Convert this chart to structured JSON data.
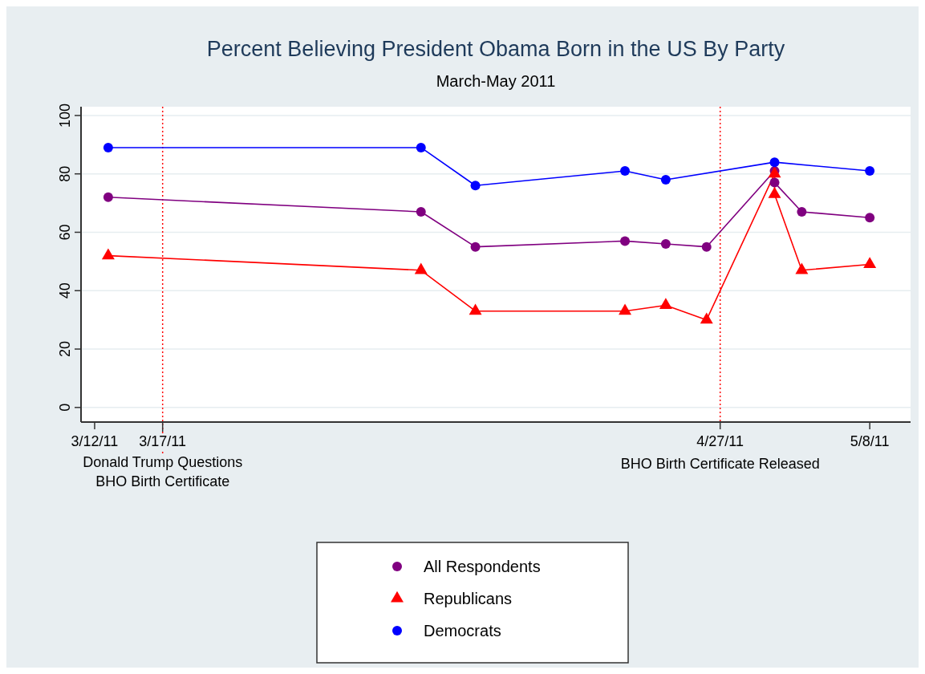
{
  "chart_data": {
    "type": "line",
    "title": "Percent Believing President Obama Born in the US By Party",
    "subtitle": "March-May 2011",
    "xlim": [
      "2011-03-11",
      "2011-05-11"
    ],
    "xticks": [
      {
        "value": "2011-03-12",
        "label": "3/12/11"
      },
      {
        "value": "2011-03-17",
        "label": "3/17/11"
      },
      {
        "value": "2011-04-27",
        "label": "4/27/11"
      },
      {
        "value": "2011-05-08",
        "label": "5/8/11"
      }
    ],
    "ylim": [
      -5,
      103
    ],
    "yticks": [
      0,
      20,
      40,
      60,
      80,
      100
    ],
    "grid": "y",
    "legend": "bottom",
    "ref_lines": [
      {
        "axis": "x",
        "value": "2011-03-17",
        "label": "Donald Trump Questions\nBHO Birth Certificate",
        "color": "#ff0000",
        "line_style": "dotted"
      },
      {
        "axis": "x",
        "value": "2011-04-27",
        "label": "BHO Birth Certificate Released",
        "color": "#ff0000",
        "line_style": "dotted"
      }
    ],
    "series": [
      {
        "name": "All Respondents",
        "color": "#800080",
        "marker": "circle",
        "x": [
          "2011-03-13",
          "2011-04-05",
          "2011-04-09",
          "2011-04-20",
          "2011-04-23",
          "2011-04-26",
          "2011-05-01",
          "2011-05-01",
          "2011-05-03",
          "2011-05-08"
        ],
        "values": [
          72,
          67,
          55,
          57,
          56,
          55,
          81,
          77,
          67,
          65
        ]
      },
      {
        "name": "Republicans",
        "color": "#ff0000",
        "marker": "triangle",
        "x": [
          "2011-03-13",
          "2011-04-05",
          "2011-04-09",
          "2011-04-20",
          "2011-04-23",
          "2011-04-26",
          "2011-05-01",
          "2011-05-01",
          "2011-05-03",
          "2011-05-08"
        ],
        "values": [
          52,
          47,
          33,
          33,
          35,
          30,
          80,
          73,
          47,
          49
        ]
      },
      {
        "name": "Democrats",
        "color": "#0000ff",
        "marker": "circle",
        "x": [
          "2011-03-13",
          "2011-04-05",
          "2011-04-09",
          "2011-04-20",
          "2011-04-23",
          "2011-05-01",
          "2011-05-08"
        ],
        "values": [
          89,
          89,
          76,
          81,
          78,
          84,
          81
        ]
      }
    ]
  }
}
